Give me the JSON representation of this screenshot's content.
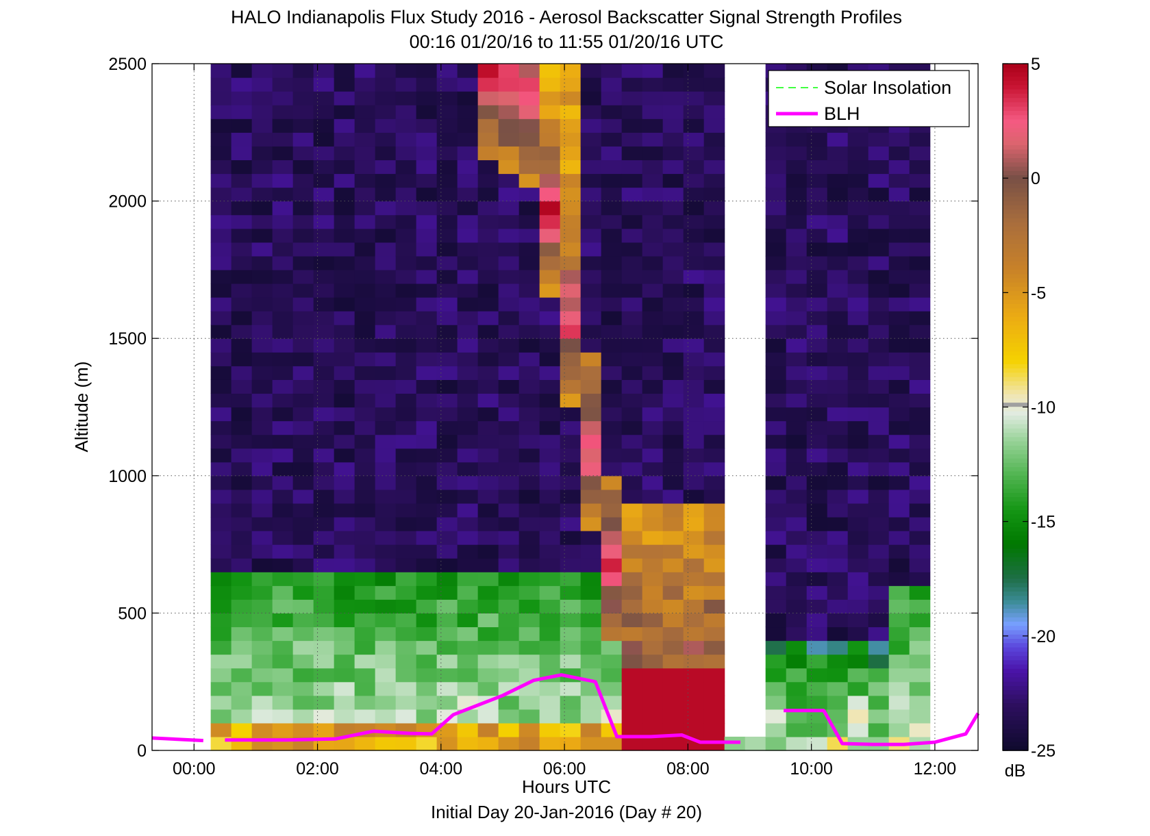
{
  "chart_data": {
    "type": "heatmap",
    "title": "HALO Indianapolis Flux Study 2016 - Aerosol Backscatter Signal Strength Profiles",
    "subtitle": "00:16 01/20/16 to 11:55 01/20/16  UTC",
    "xlabel": "Hours UTC",
    "xlabel2": "Initial Day 20-Jan-2016 (Day # 20)",
    "ylabel": "Altitude (m)",
    "xlim": [
      -0.68,
      12.7
    ],
    "ylim": [
      0,
      2500
    ],
    "x_ticks": [
      0,
      2,
      4,
      6,
      8,
      10,
      12
    ],
    "x_tick_labels": [
      "00:00",
      "02:00",
      "04:00",
      "06:00",
      "08:00",
      "10:00",
      "12:00"
    ],
    "y_ticks": [
      0,
      500,
      1000,
      1500,
      2000,
      2500
    ],
    "y_tick_labels": [
      "0",
      "500",
      "1000",
      "1500",
      "2000",
      "2500"
    ],
    "grid": true,
    "colorbar": {
      "label": "dB",
      "range": [
        -25,
        5
      ],
      "ticks": [
        5,
        0,
        -5,
        -10,
        -15,
        -20,
        -25
      ],
      "tick_labels": [
        "5",
        "0",
        "-5",
        "-10",
        "-15",
        "-20",
        "-25"
      ]
    },
    "heatmap": {
      "x_start_hours": 0.27,
      "x_end_hours": 11.92,
      "n_columns": 35,
      "altitude_bin_m": 50,
      "n_bins": 50,
      "description_of_fields": "dB backscatter by column (time) and altitude"
    },
    "legend": {
      "position": "top-right",
      "entries": [
        {
          "label": "Solar Insolation",
          "color": "#00ff00",
          "style": "dashed"
        },
        {
          "label": "BLH",
          "color": "#ff00ff",
          "style": "solid"
        }
      ]
    },
    "series": [
      {
        "name": "BLH",
        "color": "#ff00ff",
        "segments": [
          [
            [
              -0.68,
              45
            ],
            [
              0.15,
              36
            ]
          ],
          [
            [
              0.5,
              38
            ],
            [
              1.5,
              38
            ],
            [
              2.3,
              42
            ],
            [
              2.9,
              70
            ],
            [
              3.5,
              62
            ],
            [
              3.85,
              60
            ],
            [
              4.2,
              130
            ],
            [
              4.6,
              165
            ],
            [
              5.0,
              200
            ],
            [
              5.5,
              255
            ],
            [
              5.95,
              275
            ],
            [
              6.5,
              250
            ],
            [
              6.85,
              50
            ],
            [
              7.4,
              50
            ],
            [
              7.9,
              56
            ],
            [
              8.2,
              30
            ],
            [
              8.85,
              30
            ]
          ],
          [
            [
              9.55,
              145
            ],
            [
              10.2,
              145
            ],
            [
              10.5,
              25
            ],
            [
              11.0,
              22
            ],
            [
              11.5,
              22
            ],
            [
              12.0,
              30
            ],
            [
              12.5,
              60
            ],
            [
              12.7,
              135
            ]
          ]
        ]
      }
    ]
  }
}
